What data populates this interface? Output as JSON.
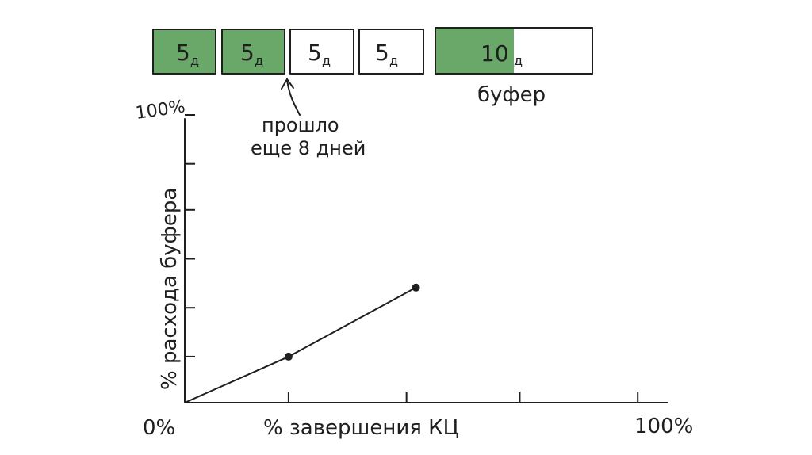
{
  "colors": {
    "ink": "#1f1f1f",
    "done_fill": "#6aa86a",
    "background": "#ffffff"
  },
  "tasks": [
    {
      "duration": "5",
      "unit": "д",
      "done_fraction": 1
    },
    {
      "duration": "5",
      "unit": "д",
      "done_fraction": 1
    },
    {
      "duration": "5",
      "unit": "д",
      "done_fraction": 0
    },
    {
      "duration": "5",
      "unit": "д",
      "done_fraction": 0
    }
  ],
  "buffer": {
    "duration": "10",
    "unit": "д",
    "consumed_fraction": 0.5,
    "label": "буфер"
  },
  "annotation": {
    "line1": "прошло",
    "line2": "еще 8 дней",
    "icon": "arrow-up-icon"
  },
  "chart_data": {
    "type": "line",
    "xlabel": "% завершения КЦ",
    "ylabel": "% расхода буфера",
    "x_min_label": "0%",
    "x_max_label": "100%",
    "y_max_label": "100%",
    "xlim": [
      0,
      100
    ],
    "ylim": [
      0,
      100
    ],
    "x_ticks": [
      22,
      47,
      71,
      96
    ],
    "y_ticks": [
      16,
      33,
      50,
      67,
      83,
      100
    ],
    "series": [
      {
        "x": [
          0,
          22,
          49
        ],
        "y": [
          0,
          16,
          40
        ]
      }
    ]
  }
}
